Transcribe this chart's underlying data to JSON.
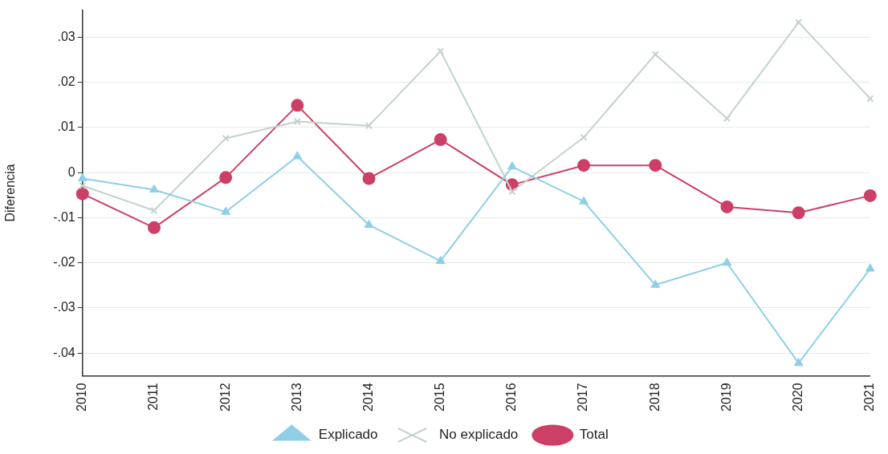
{
  "chart_data": {
    "type": "line",
    "ylabel": "Diferencia",
    "categories": [
      "2010",
      "2011",
      "2012",
      "2013",
      "2014",
      "2015",
      "2016",
      "2017",
      "2018",
      "2019",
      "2020",
      "2021"
    ],
    "series": [
      {
        "name": "Explicado",
        "color": "#8ecfe6",
        "marker": "triangle",
        "values": [
          -0.0013,
          -0.0038,
          -0.0087,
          0.0036,
          -0.0116,
          -0.0196,
          0.0013,
          -0.0064,
          -0.0249,
          -0.02,
          -0.0422,
          -0.0213
        ]
      },
      {
        "name": "No explicado",
        "color": "#c2d3cc",
        "marker": "cross",
        "values": [
          -0.0029,
          -0.0084,
          0.0076,
          0.0113,
          0.0104,
          0.0269,
          -0.0042,
          0.0078,
          0.0262,
          0.012,
          0.0333,
          0.0164
        ]
      },
      {
        "name": "Total",
        "color": "#cc3f66",
        "marker": "circle",
        "values": [
          -0.0047,
          -0.0122,
          -0.0011,
          0.0149,
          -0.0013,
          0.0073,
          -0.0027,
          0.0016,
          0.0016,
          -0.0076,
          -0.0089,
          -0.0051
        ]
      }
    ],
    "ylim": [
      -0.045,
      0.036
    ],
    "yticks": [
      {
        "value": -0.04,
        "label": "-.04"
      },
      {
        "value": -0.03,
        "label": "-.03"
      },
      {
        "value": -0.02,
        "label": "-.02"
      },
      {
        "value": -0.01,
        "label": "-.01"
      },
      {
        "value": 0,
        "label": "0"
      },
      {
        "value": 0.01,
        "label": ".01"
      },
      {
        "value": 0.02,
        "label": ".02"
      },
      {
        "value": 0.03,
        "label": ".03"
      }
    ],
    "grid": "y",
    "legend": "bottom",
    "line_style": "solid"
  }
}
